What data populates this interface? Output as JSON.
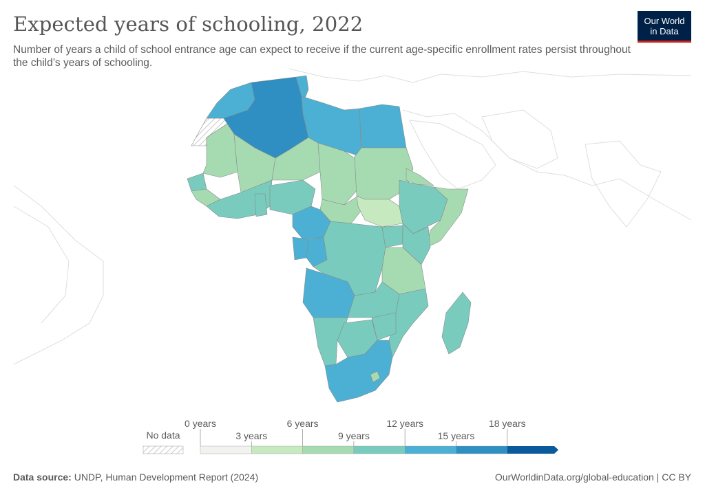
{
  "header": {
    "title": "Expected years of schooling, 2022",
    "subtitle": "Number of years a child of school entrance age can expect to receive if the current age-specific enrollment rates persist throughout the child’s years of schooling.",
    "logo_line1": "Our World",
    "logo_line2": "in Data"
  },
  "legend": {
    "no_data_label": "No data",
    "bins": [
      {
        "label_top": "0 years",
        "label_bottom": "3 years",
        "color": "#f2f2ee"
      },
      {
        "label_top": "6 years",
        "label_bottom": "9 years",
        "color": "#c7e9c0"
      },
      {
        "label_top": "12 years",
        "label_bottom": "15 years",
        "color": "#a6dbb2"
      },
      {
        "label_top": "18 years",
        "label_bottom": "",
        "color": "#78cbbd"
      }
    ],
    "colors": [
      "#f2f2ee",
      "#c7e9c0",
      "#a6dbb2",
      "#78cbbd",
      "#4bb0d3",
      "#2f8fc2",
      "#0b5a9c"
    ],
    "tick_labels": [
      "0 years",
      "3 years",
      "6 years",
      "9 years",
      "12 years",
      "15 years",
      "18 years"
    ]
  },
  "chart_data": {
    "type": "choropleth",
    "title": "Expected years of schooling, 2022",
    "unit": "years",
    "scale_bins": [
      0,
      3,
      6,
      9,
      12,
      15,
      18
    ],
    "region_bins": {
      "Algeria": "15-18",
      "Morocco": "12-15",
      "Tunisia": "12-15",
      "Libya": "12-15",
      "Egypt": "12-15",
      "Western Sahara": "No data",
      "Mauritania": "6-9",
      "Mali": "6-9",
      "Niger": "6-9",
      "Chad": "6-9",
      "Sudan": "6-9",
      "South Sudan": "3-6",
      "Eritrea": "6-9",
      "Ethiopia": "9-12",
      "Somalia": "6-9",
      "Senegal": "9-12",
      "Guinea": "6-9",
      "Burkina Faso": "6-9",
      "Nigeria": "9-12",
      "Ghana": "9-12",
      "Cameroon": "12-15",
      "Central African Republic": "6-9",
      "DR Congo": "9-12",
      "Gabon": "12-15",
      "Congo": "12-15",
      "Kenya": "9-12",
      "Uganda": "9-12",
      "Tanzania": "6-9",
      "Angola": "12-15",
      "Zambia": "9-12",
      "Mozambique": "9-12",
      "Namibia": "9-12",
      "Botswana": "9-12",
      "Zimbabwe": "9-12",
      "South Africa": "12-15",
      "Madagascar": "9-12"
    }
  },
  "footer": {
    "source_label": "Data source:",
    "source_text": "UNDP, Human Development Report (2024)",
    "right_text": "OurWorldinData.org/global-education | CC BY"
  }
}
